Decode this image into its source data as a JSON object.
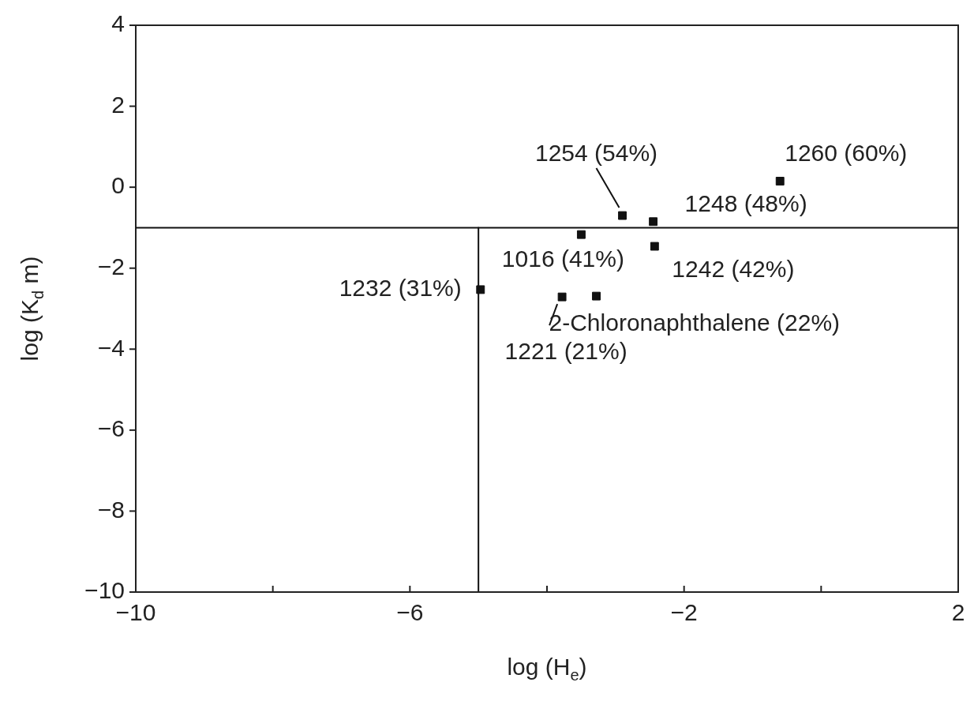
{
  "chart_data": {
    "type": "scatter",
    "xlabel": "log (H$_{e}$)",
    "ylabel": "log (K$_{d}$ m)",
    "x": [
      -0.6,
      -2.9,
      -2.45,
      -3.5,
      -2.43,
      -4.97,
      -3.78,
      -3.28
    ],
    "series": [
      {
        "color": "#111111",
        "values": [
          0.15,
          -0.7,
          -0.85,
          -1.17,
          -1.46,
          -2.53,
          -2.71,
          -2.69
        ]
      },
      {
        "type": "line",
        "color": "#111111",
        "x": [
          -5,
          -5
        ],
        "values": [
          -1,
          -10
        ],
        "marker": "none"
      }
    ],
    "marker": "square",
    "line_style": "solid",
    "grid": false,
    "legend": false,
    "xlim": [
      -10,
      2
    ],
    "xticks": [
      -10,
      {
        "value": -8,
        "label": null
      },
      -6,
      {
        "value": -4,
        "label": null
      },
      -2,
      {
        "value": 0,
        "label": null
      },
      2
    ],
    "ylim": [
      -10,
      4
    ],
    "yticks": [
      -10,
      -8,
      -6,
      -4,
      -2,
      0,
      2,
      4
    ],
    "ref_lines": [
      {
        "axis": "y",
        "value": -1,
        "color": "#111111",
        "line_style": "solid"
      }
    ],
    "annotations": [
      {
        "text": "1260 (60%)",
        "x": -0.6,
        "y": 0.15
      },
      {
        "text": "1254 (54%)",
        "x": -2.9,
        "y": -0.7
      },
      {
        "text": "1248 (48%)",
        "x": -2.45,
        "y": -0.85
      },
      {
        "text": "1016 (41%)",
        "x": -3.5,
        "y": -1.17
      },
      {
        "text": "1242 (42%)",
        "x": -2.43,
        "y": -1.46
      },
      {
        "text": "1232 (31%)",
        "x": -4.97,
        "y": -2.53
      },
      {
        "text": "1221 (21%)",
        "x": -3.78,
        "y": -2.71
      },
      {
        "text": "2-Chloronaphthalene (22%)",
        "x": -3.28,
        "y": -2.69
      }
    ]
  }
}
